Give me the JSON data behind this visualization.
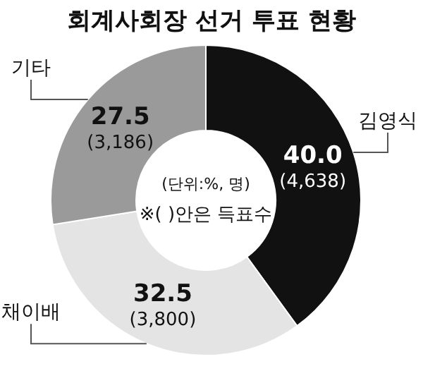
{
  "chart_data": {
    "type": "donut",
    "title": "회계사회장 선거 투표 현황",
    "categories": [
      "김영식",
      "채이배",
      "기타"
    ],
    "values": [
      40.0,
      32.5,
      27.5
    ],
    "colors": [
      "#111111",
      "#e4e4e4",
      "#9a9a9a"
    ],
    "value_labels": [
      "40.0",
      "32.5",
      "27.5"
    ],
    "annotations": [
      {
        "text": "(4,638)",
        "x": "김영식"
      },
      {
        "text": "(3,800)",
        "x": "채이배"
      },
      {
        "text": "(3,186)",
        "x": "기타"
      },
      "(단위:%, 명)",
      "※( )안은 득표수"
    ]
  }
}
